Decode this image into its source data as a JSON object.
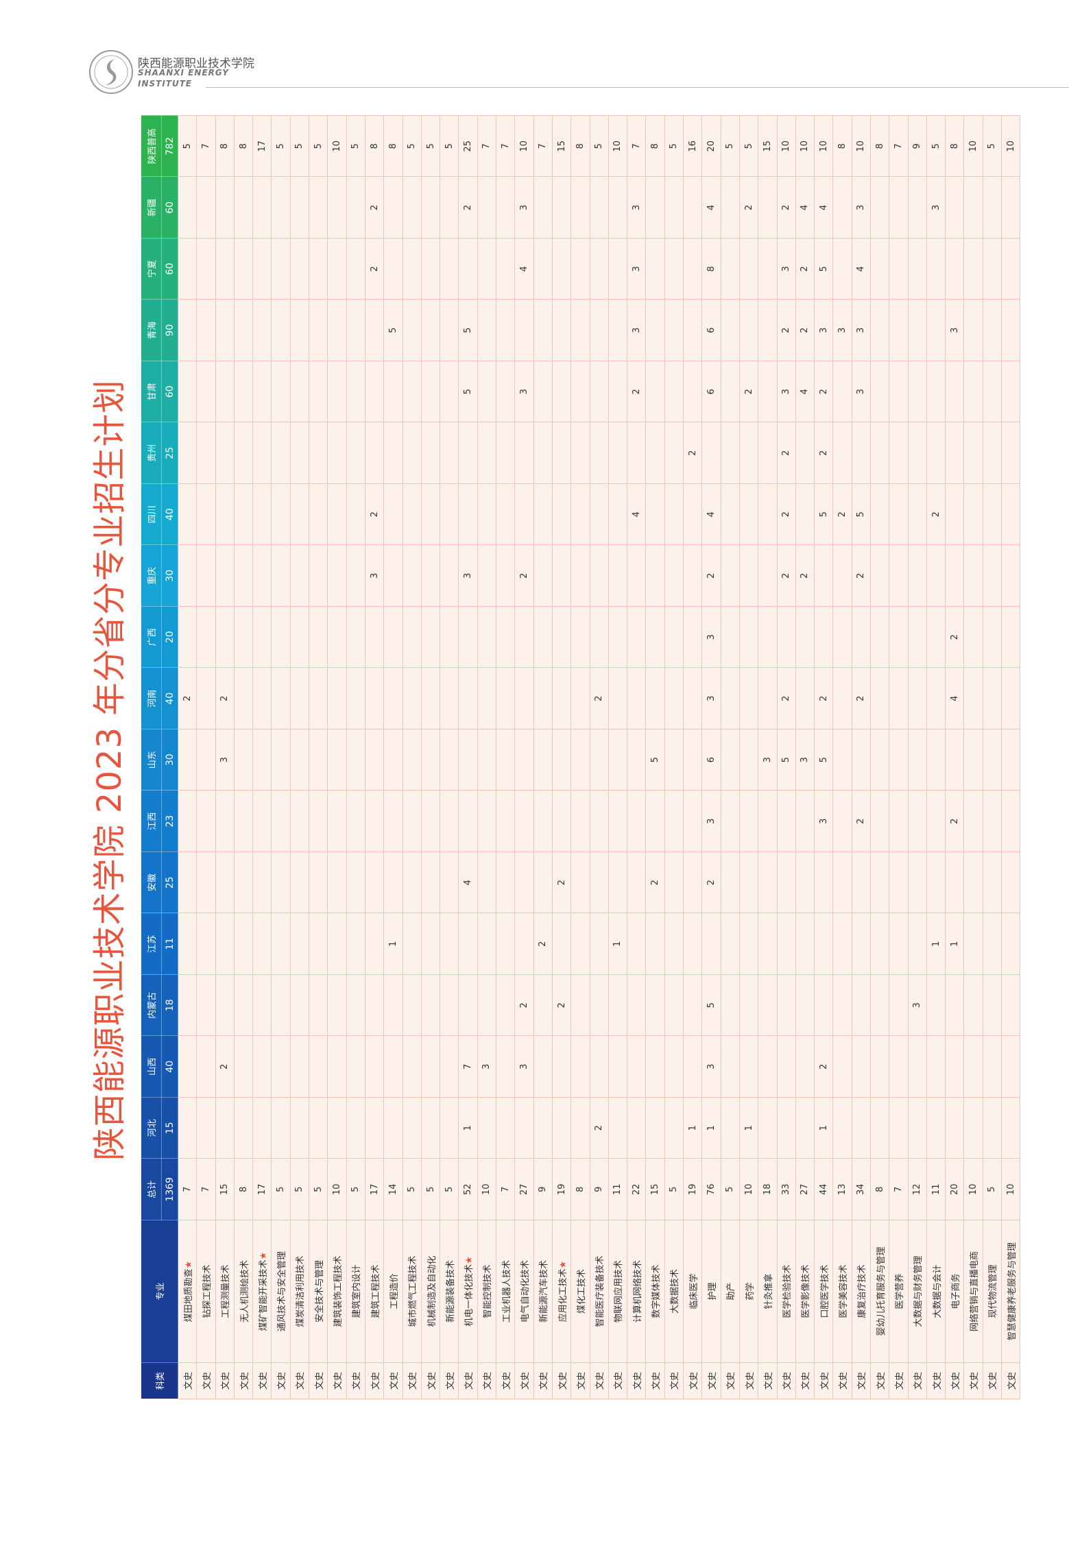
{
  "header": {
    "school_cn": "陕西能源职业技术学院",
    "school_en_1": "SHAANXI ENERGY",
    "school_en_2": "INSTITUTE"
  },
  "title": "陕西能源职业技术学院 2023 年分省分专业招生计划",
  "table": {
    "columns": [
      "科类",
      "专业",
      "总计",
      "河北",
      "山西",
      "内蒙古",
      "江苏",
      "安徽",
      "江西",
      "山东",
      "河南",
      "广西",
      "重庆",
      "四川",
      "贵州",
      "甘肃",
      "青海",
      "宁夏",
      "新疆",
      "陕西普高"
    ],
    "totals": [
      1369,
      15,
      40,
      18,
      11,
      25,
      23,
      30,
      40,
      20,
      30,
      40,
      25,
      60,
      90,
      60,
      60,
      782
    ],
    "rows": [
      [
        "文史",
        "煤田地质勘查★",
        7,
        null,
        null,
        null,
        null,
        null,
        null,
        null,
        2,
        null,
        null,
        null,
        null,
        null,
        null,
        null,
        null,
        5
      ],
      [
        "文史",
        "钻探工程技术",
        7,
        null,
        null,
        null,
        null,
        null,
        null,
        null,
        null,
        null,
        null,
        null,
        null,
        null,
        null,
        null,
        null,
        7
      ],
      [
        "文史",
        "工程测量技术",
        15,
        null,
        2,
        null,
        null,
        null,
        null,
        3,
        2,
        null,
        null,
        null,
        null,
        null,
        null,
        null,
        null,
        8
      ],
      [
        "文史",
        "无人机测绘技术",
        8,
        null,
        null,
        null,
        null,
        null,
        null,
        null,
        null,
        null,
        null,
        null,
        null,
        null,
        null,
        null,
        null,
        8
      ],
      [
        "文史",
        "煤矿智能开采技术★",
        17,
        null,
        null,
        null,
        null,
        null,
        null,
        null,
        null,
        null,
        null,
        null,
        null,
        null,
        null,
        null,
        null,
        17
      ],
      [
        "文史",
        "通风技术与安全管理",
        5,
        null,
        null,
        null,
        null,
        null,
        null,
        null,
        null,
        null,
        null,
        null,
        null,
        null,
        null,
        null,
        null,
        5
      ],
      [
        "文史",
        "煤炭清洁利用技术",
        5,
        null,
        null,
        null,
        null,
        null,
        null,
        null,
        null,
        null,
        null,
        null,
        null,
        null,
        null,
        null,
        null,
        5
      ],
      [
        "文史",
        "安全技术与管理",
        5,
        null,
        null,
        null,
        null,
        null,
        null,
        null,
        null,
        null,
        null,
        null,
        null,
        null,
        null,
        null,
        null,
        5
      ],
      [
        "文史",
        "建筑装饰工程技术",
        10,
        null,
        null,
        null,
        null,
        null,
        null,
        null,
        null,
        null,
        null,
        null,
        null,
        null,
        null,
        null,
        null,
        10
      ],
      [
        "文史",
        "建筑室内设计",
        5,
        null,
        null,
        null,
        null,
        null,
        null,
        null,
        null,
        null,
        null,
        null,
        null,
        null,
        null,
        null,
        null,
        5
      ],
      [
        "文史",
        "建筑工程技术",
        17,
        null,
        null,
        null,
        null,
        null,
        null,
        null,
        null,
        null,
        3,
        2,
        null,
        null,
        null,
        2,
        2,
        8
      ],
      [
        "文史",
        "工程造价",
        14,
        null,
        null,
        null,
        1,
        null,
        null,
        null,
        null,
        null,
        null,
        null,
        null,
        null,
        5,
        null,
        null,
        8
      ],
      [
        "文史",
        "城市燃气工程技术",
        5,
        null,
        null,
        null,
        null,
        null,
        null,
        null,
        null,
        null,
        null,
        null,
        null,
        null,
        null,
        null,
        null,
        5
      ],
      [
        "文史",
        "机械制造及自动化",
        5,
        null,
        null,
        null,
        null,
        null,
        null,
        null,
        null,
        null,
        null,
        null,
        null,
        null,
        null,
        null,
        null,
        5
      ],
      [
        "文史",
        "新能源装备技术",
        5,
        null,
        null,
        null,
        null,
        null,
        null,
        null,
        null,
        null,
        null,
        null,
        null,
        null,
        null,
        null,
        null,
        5
      ],
      [
        "文史",
        "机电一体化技术★",
        52,
        1,
        7,
        null,
        null,
        4,
        null,
        null,
        null,
        null,
        3,
        null,
        null,
        5,
        5,
        null,
        2,
        25
      ],
      [
        "文史",
        "智能控制技术",
        10,
        null,
        3,
        null,
        null,
        null,
        null,
        null,
        null,
        null,
        null,
        null,
        null,
        null,
        null,
        null,
        null,
        7
      ],
      [
        "文史",
        "工业机器人技术",
        7,
        null,
        null,
        null,
        null,
        null,
        null,
        null,
        null,
        null,
        null,
        null,
        null,
        null,
        null,
        null,
        null,
        7
      ],
      [
        "文史",
        "电气自动化技术",
        27,
        null,
        3,
        2,
        null,
        null,
        null,
        null,
        null,
        null,
        2,
        null,
        null,
        3,
        null,
        4,
        3,
        10
      ],
      [
        "文史",
        "新能源汽车技术",
        9,
        null,
        null,
        null,
        2,
        null,
        null,
        null,
        null,
        null,
        null,
        null,
        null,
        null,
        null,
        null,
        null,
        7
      ],
      [
        "文史",
        "应用化工技术★",
        19,
        null,
        null,
        2,
        null,
        2,
        null,
        null,
        null,
        null,
        null,
        null,
        null,
        null,
        null,
        null,
        null,
        15
      ],
      [
        "文史",
        "煤化工技术",
        8,
        null,
        null,
        null,
        null,
        null,
        null,
        null,
        null,
        null,
        null,
        null,
        null,
        null,
        null,
        null,
        null,
        8
      ],
      [
        "文史",
        "智能医疗装备技术",
        9,
        2,
        null,
        null,
        null,
        null,
        null,
        null,
        2,
        null,
        null,
        null,
        null,
        null,
        null,
        null,
        null,
        5
      ],
      [
        "文史",
        "物联网应用技术",
        11,
        null,
        null,
        null,
        1,
        null,
        null,
        null,
        null,
        null,
        null,
        null,
        null,
        null,
        null,
        null,
        null,
        10
      ],
      [
        "文史",
        "计算机网络技术",
        22,
        null,
        null,
        null,
        null,
        null,
        null,
        null,
        null,
        null,
        null,
        4,
        null,
        2,
        3,
        3,
        3,
        7
      ],
      [
        "文史",
        "数字媒体技术",
        15,
        null,
        null,
        null,
        null,
        2,
        null,
        5,
        null,
        null,
        null,
        null,
        null,
        null,
        null,
        null,
        null,
        8
      ],
      [
        "文史",
        "大数据技术",
        5,
        null,
        null,
        null,
        null,
        null,
        null,
        null,
        null,
        null,
        null,
        null,
        null,
        null,
        null,
        null,
        null,
        5
      ],
      [
        "文史",
        "临床医学",
        19,
        1,
        null,
        null,
        null,
        null,
        null,
        null,
        null,
        null,
        null,
        null,
        2,
        null,
        null,
        null,
        null,
        16
      ],
      [
        "文史",
        "护理",
        76,
        1,
        3,
        5,
        null,
        2,
        3,
        6,
        3,
        3,
        2,
        4,
        null,
        6,
        6,
        8,
        4,
        20
      ],
      [
        "文史",
        "助产",
        5,
        null,
        null,
        null,
        null,
        null,
        null,
        null,
        null,
        null,
        null,
        null,
        null,
        null,
        null,
        null,
        null,
        5
      ],
      [
        "文史",
        "药学",
        10,
        1,
        null,
        null,
        null,
        null,
        null,
        null,
        null,
        null,
        null,
        null,
        null,
        2,
        null,
        null,
        2,
        5
      ],
      [
        "文史",
        "针灸推拿",
        18,
        null,
        null,
        null,
        null,
        null,
        null,
        3,
        null,
        null,
        null,
        null,
        null,
        null,
        null,
        null,
        null,
        15
      ],
      [
        "文史",
        "医学检验技术",
        33,
        null,
        null,
        null,
        null,
        null,
        null,
        5,
        2,
        null,
        2,
        2,
        2,
        3,
        2,
        3,
        2,
        10
      ],
      [
        "文史",
        "医学影像技术",
        27,
        null,
        null,
        null,
        null,
        null,
        null,
        3,
        null,
        null,
        2,
        null,
        null,
        4,
        2,
        2,
        4,
        10
      ],
      [
        "文史",
        "口腔医学技术",
        44,
        1,
        2,
        null,
        null,
        null,
        3,
        5,
        2,
        null,
        null,
        5,
        2,
        2,
        3,
        5,
        4,
        10
      ],
      [
        "文史",
        "医学美容技术",
        13,
        null,
        null,
        null,
        null,
        null,
        null,
        null,
        null,
        null,
        null,
        2,
        null,
        null,
        3,
        null,
        null,
        8
      ],
      [
        "文史",
        "康复治疗技术",
        34,
        null,
        null,
        null,
        null,
        null,
        2,
        null,
        2,
        null,
        2,
        5,
        null,
        3,
        3,
        4,
        3,
        10
      ],
      [
        "文史",
        "婴幼儿托育服务与管理",
        8,
        null,
        null,
        null,
        null,
        null,
        null,
        null,
        null,
        null,
        null,
        null,
        null,
        null,
        null,
        null,
        null,
        8
      ],
      [
        "文史",
        "医学营养",
        7,
        null,
        null,
        null,
        null,
        null,
        null,
        null,
        null,
        null,
        null,
        null,
        null,
        null,
        null,
        null,
        null,
        7
      ],
      [
        "文史",
        "大数据与财务管理",
        12,
        null,
        null,
        3,
        null,
        null,
        null,
        null,
        null,
        null,
        null,
        null,
        null,
        null,
        null,
        null,
        null,
        9
      ],
      [
        "文史",
        "大数据与会计",
        11,
        null,
        null,
        null,
        1,
        null,
        null,
        null,
        null,
        null,
        null,
        2,
        null,
        null,
        null,
        null,
        3,
        5
      ],
      [
        "文史",
        "电子商务",
        20,
        null,
        null,
        null,
        1,
        null,
        2,
        null,
        4,
        2,
        null,
        null,
        null,
        null,
        3,
        null,
        null,
        8
      ],
      [
        "文史",
        "网络营销与直播电商",
        10,
        null,
        null,
        null,
        null,
        null,
        null,
        null,
        null,
        null,
        null,
        null,
        null,
        null,
        null,
        null,
        null,
        10
      ],
      [
        "文史",
        "现代物流管理",
        5,
        null,
        null,
        null,
        null,
        null,
        null,
        null,
        null,
        null,
        null,
        null,
        null,
        null,
        null,
        null,
        null,
        5
      ],
      [
        "文史",
        "智慧健康养老服务与管理",
        10,
        null,
        null,
        null,
        null,
        null,
        null,
        null,
        null,
        null,
        null,
        null,
        null,
        null,
        null,
        null,
        null,
        10
      ]
    ]
  }
}
